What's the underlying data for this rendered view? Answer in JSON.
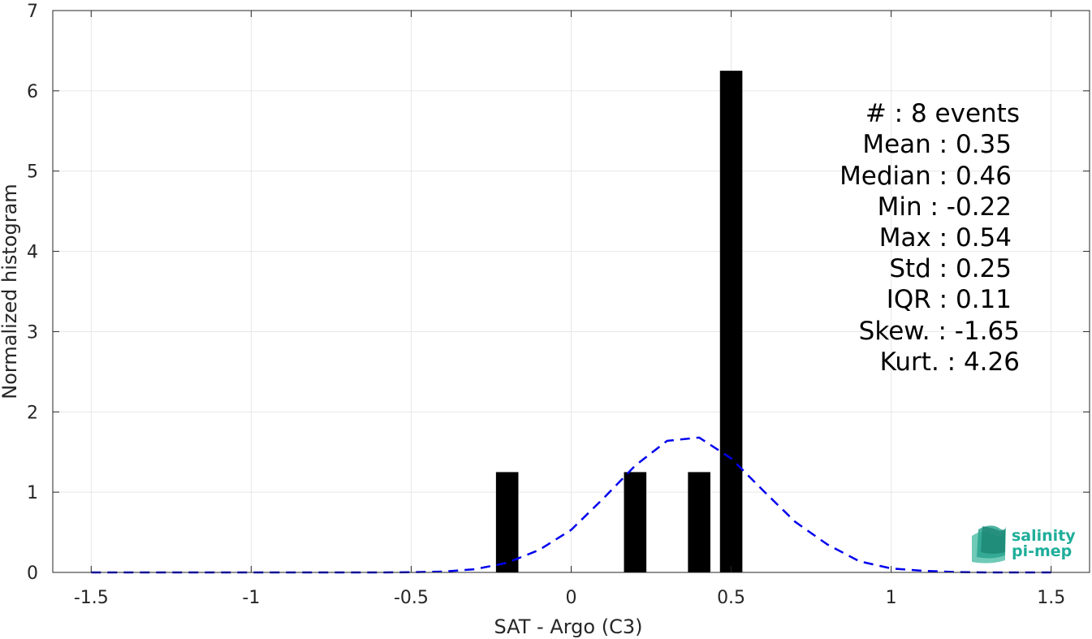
{
  "chart_data": {
    "type": "bar",
    "xlabel": "SAT - Argo (C3)",
    "ylabel": "Normalized histogram",
    "xlim": [
      -1.62,
      1.62
    ],
    "ylim": [
      0,
      7
    ],
    "xticks": [
      -1.5,
      -1,
      -0.5,
      0,
      0.5,
      1,
      1.5
    ],
    "xtick_labels": [
      "-1.5",
      "-1",
      "-0.5",
      "0",
      "0.5",
      "1",
      "1.5"
    ],
    "yticks": [
      0,
      1,
      2,
      3,
      4,
      5,
      6,
      7
    ],
    "ytick_labels": [
      "0",
      "1",
      "2",
      "3",
      "4",
      "5",
      "6",
      "7"
    ],
    "grid": true,
    "bar_width": 0.07,
    "bars": [
      {
        "x": -0.2,
        "value": 1.25
      },
      {
        "x": 0.2,
        "value": 1.25
      },
      {
        "x": 0.4,
        "value": 1.25
      },
      {
        "x": 0.5,
        "value": 6.25
      }
    ],
    "fit_curve": {
      "style": "dashed",
      "color": "#0000ee",
      "x": [
        -1.5,
        -1.4,
        -1.3,
        -1.2,
        -1.1,
        -1.0,
        -0.9,
        -0.8,
        -0.7,
        -0.6,
        -0.5,
        -0.4,
        -0.3,
        -0.2,
        -0.1,
        0.0,
        0.1,
        0.2,
        0.3,
        0.4,
        0.5,
        0.6,
        0.7,
        0.8,
        0.9,
        1.0,
        1.1,
        1.2,
        1.3,
        1.4,
        1.5
      ],
      "y": [
        0,
        0,
        0,
        0,
        0,
        0,
        0,
        0,
        0,
        0,
        0.002,
        0.01,
        0.04,
        0.12,
        0.28,
        0.53,
        0.92,
        1.33,
        1.64,
        1.68,
        1.42,
        1.02,
        0.63,
        0.35,
        0.14,
        0.05,
        0.02,
        0.005,
        0,
        0,
        0
      ]
    },
    "bar_color": "#000000",
    "stats_lines": [
      "#  : 8 events",
      "Mean : 0.35",
      "Median : 0.46",
      "Min : -0.22",
      "Max : 0.54",
      "Std : 0.25",
      "IQR : 0.11",
      "Skew. : -1.65",
      "Kurt. : 4.26"
    ]
  },
  "logo": {
    "line1": "salinity",
    "line2": "pi-mep",
    "color": "#1fae9a"
  }
}
